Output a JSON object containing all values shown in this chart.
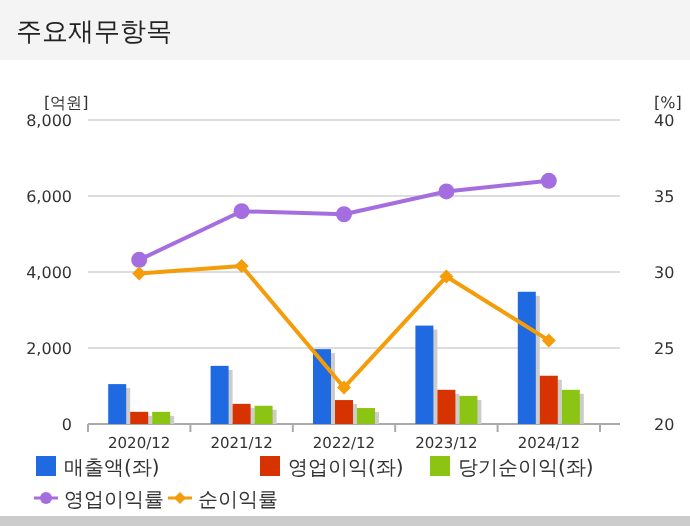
{
  "chart_data": {
    "type": "bar",
    "title": "주요재무항목",
    "ylabel": "[억원]",
    "y2label": "[%]",
    "categories": [
      "2020/12",
      "2021/12",
      "2022/12",
      "2023/12",
      "2024/12"
    ],
    "series": [
      {
        "name": "매출액(좌)",
        "color": "#1f6ae0",
        "values": [
          1050,
          1530,
          1970,
          2590,
          3480
        ]
      },
      {
        "name": "영업이익(좌)",
        "color": "#d63300",
        "values": [
          320,
          530,
          630,
          900,
          1270
        ]
      },
      {
        "name": "당기순이익(좌)",
        "color": "#8cc414",
        "values": [
          320,
          480,
          420,
          740,
          900
        ]
      },
      {
        "name": "영업이익률",
        "type": "line",
        "axis": "y2",
        "color": "#a56ee0",
        "marker": "circle",
        "values": [
          30.8,
          34.0,
          33.8,
          35.3,
          36.0
        ]
      },
      {
        "name": "순이익률",
        "type": "line",
        "axis": "y2",
        "color": "#f59c0a",
        "marker": "diamond",
        "values": [
          29.9,
          30.4,
          22.4,
          29.7,
          25.5
        ]
      }
    ],
    "ylim": [
      0,
      8000
    ],
    "yticks": [
      {
        "value": 0,
        "label": "0"
      },
      {
        "value": 2000,
        "label": "2,000"
      },
      {
        "value": 4000,
        "label": "4,000"
      },
      {
        "value": 6000,
        "label": "6,000"
      },
      {
        "value": 8000,
        "label": "8,000"
      }
    ],
    "y2lim": [
      20,
      40
    ],
    "y2ticks": [
      20,
      25,
      30,
      35,
      40
    ],
    "grid": "y",
    "legend": "bottom"
  }
}
